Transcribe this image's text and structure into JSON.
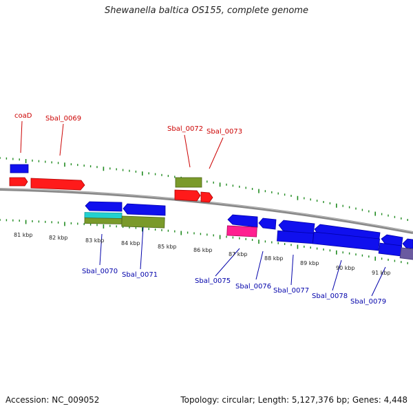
{
  "title": "Shewanella baltica OS155, complete genome",
  "footer": {
    "accession": "Accession: NC_009052",
    "summary": "Topology: circular; Length: 5,127,376 bp; Genes: 4,448"
  },
  "colors": {
    "forward_cds": "#ff1a1a",
    "reverse_cds": "#1010ee",
    "gene_olive": "#7a9a2a",
    "gene_cyan": "#22d0d0",
    "gene_pink": "#ff2090",
    "gene_purple": "#6a5aa0",
    "tick_green": "#1f8a1f",
    "backbone": "#888888",
    "forward_label": "#cc0000",
    "reverse_label": "#0000aa"
  },
  "kbp_labels": [
    "81 kbp",
    "82 kbp",
    "83 kbp",
    "84 kbp",
    "85 kbp",
    "86 kbp",
    "87 kbp",
    "88 kbp",
    "89 kbp",
    "90 kbp",
    "91 kbp"
  ],
  "top_labels": [
    "coaD",
    "Sbal_0069",
    "Sbal_0072",
    "Sbal_0073"
  ],
  "bottom_labels": [
    "Sbal_0070",
    "Sbal_0071",
    "Sbal_0075",
    "Sbal_0076",
    "Sbal_0077",
    "Sbal_0078",
    "Sbal_0079"
  ]
}
